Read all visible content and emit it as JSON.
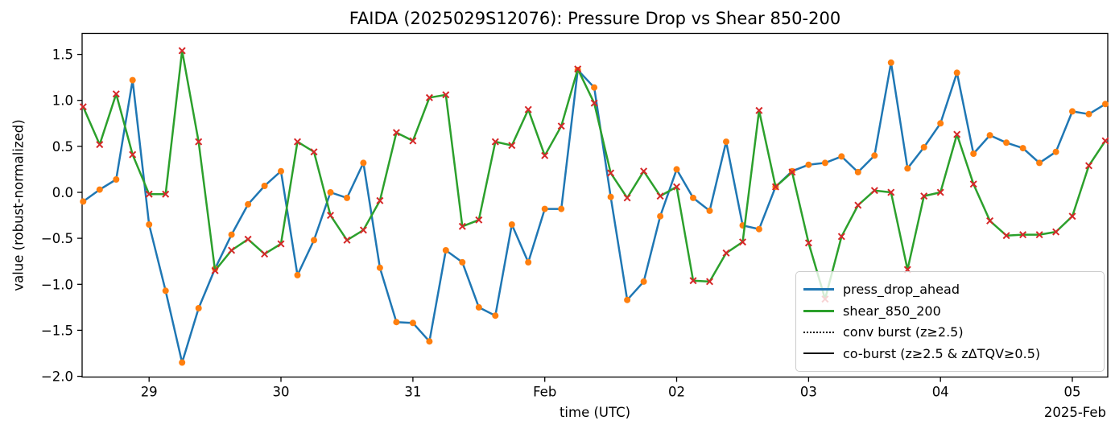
{
  "figure": {
    "title": "FAIDA (2025029S12076): Pressure Drop vs Shear 850-200",
    "xlabel": "time (UTC)",
    "ylabel": "value (robust-normalized)",
    "x_offset_label": "2025-Feb"
  },
  "chart_data": {
    "type": "line",
    "title": "FAIDA (2025029S12076): Pressure Drop vs Shear 850-200",
    "xlabel": "time (UTC)",
    "ylabel": "value (robust-normalized)",
    "x_offset_label": "2025-Feb",
    "x_description": "3-hourly timestamps (month-day hourUTC), 2025",
    "x": [
      "01-28 12",
      "01-28 15",
      "01-28 18",
      "01-28 21",
      "01-29 00",
      "01-29 03",
      "01-29 06",
      "01-29 09",
      "01-29 12",
      "01-29 15",
      "01-29 18",
      "01-29 21",
      "01-30 00",
      "01-30 03",
      "01-30 06",
      "01-30 09",
      "01-30 12",
      "01-30 15",
      "01-30 18",
      "01-30 21",
      "01-31 00",
      "01-31 03",
      "01-31 06",
      "01-31 09",
      "01-31 12",
      "01-31 15",
      "01-31 18",
      "01-31 21",
      "02-01 00",
      "02-01 03",
      "02-01 06",
      "02-01 09",
      "02-01 12",
      "02-01 15",
      "02-01 18",
      "02-01 21",
      "02-02 00",
      "02-02 03",
      "02-02 06",
      "02-02 09",
      "02-02 12",
      "02-02 15",
      "02-02 18",
      "02-02 21",
      "02-03 00",
      "02-03 03",
      "02-03 06",
      "02-03 09",
      "02-03 12",
      "02-03 15",
      "02-03 18",
      "02-03 21",
      "02-04 00",
      "02-04 03",
      "02-04 06",
      "02-04 09",
      "02-04 12",
      "02-04 15",
      "02-04 18",
      "02-04 21",
      "02-05 00",
      "02-05 03",
      "02-05 06"
    ],
    "series": [
      {
        "name": "press_drop_ahead",
        "color": "#1f77b4",
        "marker": "circle",
        "marker_color": "#ff7f0e",
        "values": [
          -0.1,
          0.03,
          0.14,
          1.22,
          -0.35,
          -1.07,
          -1.85,
          -1.26,
          -0.83,
          -0.46,
          -0.13,
          0.07,
          0.23,
          -0.9,
          -0.52,
          0.0,
          -0.06,
          0.32,
          -0.82,
          -1.41,
          -1.42,
          -1.62,
          -0.63,
          -0.76,
          -1.25,
          -1.34,
          -0.35,
          -0.76,
          -0.18,
          -0.18,
          1.33,
          1.14,
          -0.05,
          -1.17,
          -0.97,
          -0.26,
          0.25,
          -0.06,
          -0.2,
          0.55,
          -0.36,
          -0.4,
          0.06,
          0.23,
          0.3,
          0.32,
          0.39,
          0.22,
          0.4,
          1.41,
          0.26,
          0.49,
          0.75,
          1.3,
          0.42,
          0.62,
          0.54,
          0.48,
          0.32,
          0.44,
          0.88,
          0.85,
          0.96
        ]
      },
      {
        "name": "shear_850_200",
        "color": "#2ca02c",
        "marker": "x",
        "marker_color": "#d62728",
        "values": [
          0.93,
          0.52,
          1.07,
          0.41,
          -0.02,
          -0.02,
          1.54,
          0.55,
          -0.85,
          -0.63,
          -0.51,
          -0.67,
          -0.56,
          0.55,
          0.44,
          -0.25,
          -0.52,
          -0.41,
          -0.09,
          0.65,
          0.56,
          1.03,
          1.06,
          -0.37,
          -0.3,
          0.55,
          0.51,
          0.9,
          0.4,
          0.72,
          1.34,
          0.97,
          0.21,
          -0.06,
          0.23,
          -0.04,
          0.06,
          -0.96,
          -0.97,
          -0.66,
          -0.54,
          0.89,
          0.06,
          0.22,
          -0.55,
          -1.16,
          -0.48,
          -0.14,
          0.02,
          0.0,
          -0.84,
          -0.04,
          0.0,
          0.63,
          0.09,
          -0.31,
          -0.47,
          -0.46,
          -0.46,
          -0.43,
          -0.26,
          0.29,
          0.56
        ]
      }
    ],
    "legend_extra": [
      {
        "label": "conv burst (z≥2.5)",
        "style": "dotted",
        "color": "#000000"
      },
      {
        "label": "co-burst (z≥2.5 & zΔTQV≥0.5)",
        "style": "solid",
        "color": "#000000"
      }
    ],
    "legend_position": "lower right",
    "grid": false,
    "ylim": [
      -2.01,
      1.73
    ],
    "yticks": [
      {
        "value": 1.5,
        "label": "1.5"
      },
      {
        "value": 1.0,
        "label": "1.0"
      },
      {
        "value": 0.5,
        "label": "0.5"
      },
      {
        "value": 0.0,
        "label": "0.0"
      },
      {
        "value": -0.5,
        "label": "−0.5"
      },
      {
        "value": -1.0,
        "label": "−1.0"
      },
      {
        "value": -1.5,
        "label": "−1.5"
      },
      {
        "value": -2.0,
        "label": "−2.0"
      }
    ],
    "xticks": [
      {
        "index": 4,
        "label": "29"
      },
      {
        "index": 12,
        "label": "30"
      },
      {
        "index": 20,
        "label": "31"
      },
      {
        "index": 28,
        "label": "Feb"
      },
      {
        "index": 36,
        "label": "02"
      },
      {
        "index": 44,
        "label": "03"
      },
      {
        "index": 52,
        "label": "04"
      },
      {
        "index": 60,
        "label": "05"
      }
    ]
  }
}
